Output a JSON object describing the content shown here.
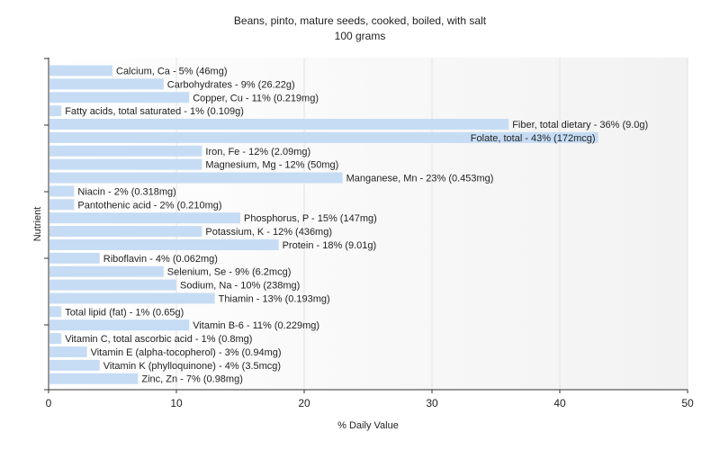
{
  "chart_data": {
    "type": "bar",
    "orientation": "horizontal",
    "title": "Beans, pinto, mature seeds, cooked, boiled, with salt",
    "subtitle": "100 grams",
    "xlabel": "% Daily Value",
    "ylabel": "Nutrient",
    "xlim": [
      0,
      50
    ],
    "xticks": [
      "0",
      "10",
      "20",
      "30",
      "40",
      "50"
    ],
    "grid": true,
    "categories": [
      "Calcium, Ca",
      "Carbohydrates",
      "Copper, Cu",
      "Fatty acids, total saturated",
      "Fiber, total dietary",
      "Folate, total",
      "Iron, Fe",
      "Magnesium, Mg",
      "Manganese, Mn",
      "Niacin",
      "Pantothenic acid",
      "Phosphorus, P",
      "Potassium, K",
      "Protein",
      "Riboflavin",
      "Selenium, Se",
      "Sodium, Na",
      "Thiamin",
      "Total lipid (fat)",
      "Vitamin B-6",
      "Vitamin C, total ascorbic acid",
      "Vitamin E (alpha-tocopherol)",
      "Vitamin K (phylloquinone)",
      "Zinc, Zn"
    ],
    "values": [
      5,
      9,
      11,
      1,
      36,
      43,
      12,
      12,
      23,
      2,
      2,
      15,
      12,
      18,
      4,
      9,
      10,
      13,
      1,
      11,
      1,
      3,
      4,
      7
    ],
    "labels": [
      "Calcium, Ca - 5% (46mg)",
      "Carbohydrates - 9% (26.22g)",
      "Copper, Cu - 11% (0.219mg)",
      "Fatty acids, total saturated - 1% (0.109g)",
      "Fiber, total dietary - 36% (9.0g)",
      "Folate, total - 43% (172mcg)",
      "Iron, Fe - 12% (2.09mg)",
      "Magnesium, Mg - 12% (50mg)",
      "Manganese, Mn - 23% (0.453mg)",
      "Niacin - 2% (0.318mg)",
      "Pantothenic acid - 2% (0.210mg)",
      "Phosphorus, P - 15% (147mg)",
      "Potassium, K - 12% (436mg)",
      "Protein - 18% (9.01g)",
      "Riboflavin - 4% (0.062mg)",
      "Selenium, Se - 9% (6.2mcg)",
      "Sodium, Na - 10% (238mg)",
      "Thiamin - 13% (0.193mg)",
      "Total lipid (fat) - 1% (0.65g)",
      "Vitamin B-6 - 11% (0.229mg)",
      "Vitamin C, total ascorbic acid - 1% (0.8mg)",
      "Vitamin E (alpha-tocopherol) - 3% (0.94mg)",
      "Vitamin K (phylloquinone) - 4% (3.5mcg)",
      "Zinc, Zn - 7% (0.98mg)"
    ],
    "bar_color": "#c6dcf4"
  }
}
